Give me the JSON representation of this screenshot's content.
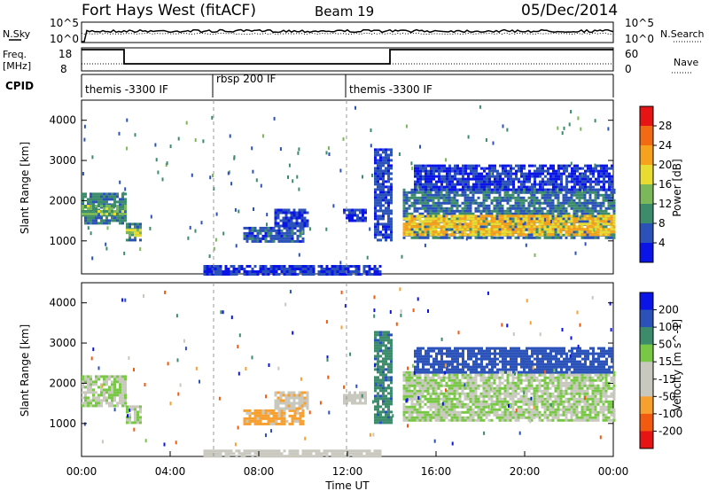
{
  "header": {
    "title": "Fort Hays West (fitACF)",
    "beam": "Beam 19",
    "date": "05/Dec/2014"
  },
  "top_panels": {
    "nsky_label": "N.Sky",
    "nsearch_label": "N.Search",
    "noise_ticks": [
      "10^5",
      "10^0"
    ],
    "noise_ticks_right": [
      "10^5",
      "10^0"
    ],
    "freq_label_1": "Freq.",
    "freq_label_2": "[MHz]",
    "freq_ticks": [
      "18",
      "8"
    ],
    "nave_ticks": [
      "60",
      "0"
    ],
    "nave_label": "Nave",
    "cpid_label": "CPID",
    "cpid_segments": [
      {
        "label": "themis -3300 IF",
        "start_hour": 0,
        "end_hour": 6
      },
      {
        "label": "rbsp 200 IF",
        "start_hour": 6,
        "end_hour": 12
      },
      {
        "label": "themis -3300 IF",
        "start_hour": 12,
        "end_hour": 24
      }
    ]
  },
  "colors": {
    "power_scale": [
      "#0a14e6",
      "#2a52b8",
      "#3c8c6c",
      "#7ab85a",
      "#e8dc32",
      "#f7a21c",
      "#f26a14",
      "#e61414"
    ],
    "velocity_scale": [
      "#e61414",
      "#f25a10",
      "#f7a030",
      "#c8c8be",
      "#c8c8be",
      "#78c846",
      "#3c8c6c",
      "#2a52b8",
      "#0a14e6"
    ],
    "ground_scatter": "#c8c8be"
  },
  "chart_data": [
    {
      "type": "heatmap",
      "name": "power",
      "ylabel": "Slant Range [km]",
      "yticks": [
        "4000",
        "3000",
        "2000",
        "1000"
      ],
      "ylim": [
        180,
        4500
      ],
      "xlim": [
        0,
        24
      ],
      "colorbar_label": "Power [dB]",
      "colorbar_ticks": [
        "28",
        "24",
        "20",
        "16",
        "12",
        "8",
        "4"
      ],
      "colorbar_range": [
        0,
        32
      ],
      "echo_regions": [
        {
          "t0": 0.0,
          "t1": 2.0,
          "r0": 1450,
          "r1": 2200,
          "value": 9
        },
        {
          "t0": 0.0,
          "t1": 2.0,
          "r0": 1650,
          "r1": 1900,
          "value": 14
        },
        {
          "t0": 2.0,
          "t1": 2.7,
          "r0": 1000,
          "r1": 1450,
          "value": 8
        },
        {
          "t0": 2.0,
          "t1": 2.7,
          "r0": 1150,
          "r1": 1300,
          "value": 16
        },
        {
          "t0": 7.3,
          "t1": 10.0,
          "r0": 1000,
          "r1": 1350,
          "value": 6
        },
        {
          "t0": 8.7,
          "t1": 10.2,
          "r0": 1350,
          "r1": 1800,
          "value": 5
        },
        {
          "t0": 11.8,
          "t1": 12.8,
          "r0": 1500,
          "r1": 1800,
          "value": 4
        },
        {
          "t0": 13.2,
          "t1": 14.0,
          "r0": 1000,
          "r1": 3300,
          "value": 5
        },
        {
          "t0": 14.5,
          "t1": 24.0,
          "r0": 1050,
          "r1": 2300,
          "value": 8
        },
        {
          "t0": 14.5,
          "t1": 24.0,
          "r0": 1150,
          "r1": 1650,
          "value": 20
        },
        {
          "t0": 15.0,
          "t1": 24.0,
          "r0": 2300,
          "r1": 2900,
          "value": 4
        },
        {
          "t0": 5.5,
          "t1": 13.5,
          "r0": 180,
          "r1": 400,
          "value": 4
        }
      ]
    },
    {
      "type": "heatmap",
      "name": "velocity",
      "ylabel": "Slant Range [km]",
      "yticks": [
        "4000",
        "3000",
        "2000",
        "1000"
      ],
      "ylim": [
        180,
        4500
      ],
      "xlim": [
        0,
        24
      ],
      "xlabel": "Time UT",
      "xticks": [
        "00:00",
        "04:00",
        "08:00",
        "12:00",
        "16:00",
        "20:00",
        "00:00"
      ],
      "colorbar_label": "Velocity [m s^-1]",
      "colorbar_ticks": [
        "200",
        "100",
        "50",
        "15",
        "-15",
        "-50",
        "-100",
        "-200"
      ],
      "echo_regions": [
        {
          "t0": 0.0,
          "t1": 2.0,
          "r0": 1450,
          "r1": 2200,
          "value": 0
        },
        {
          "t0": 2.0,
          "t1": 2.7,
          "r0": 1000,
          "r1": 1450,
          "value": 0
        },
        {
          "t0": 7.3,
          "t1": 10.0,
          "r0": 1000,
          "r1": 1350,
          "value": -60
        },
        {
          "t0": 8.7,
          "t1": 10.2,
          "r0": 1350,
          "r1": 1800,
          "value": -40
        },
        {
          "t0": 11.8,
          "t1": 12.8,
          "r0": 1500,
          "r1": 1800,
          "value": -30
        },
        {
          "t0": 13.2,
          "t1": 14.0,
          "r0": 1000,
          "r1": 3300,
          "value": 40
        },
        {
          "t0": 14.5,
          "t1": 24.0,
          "r0": 1050,
          "r1": 2300,
          "value": 0
        },
        {
          "t0": 15.0,
          "t1": 24.0,
          "r0": 2300,
          "r1": 2900,
          "value": 80
        },
        {
          "t0": 5.5,
          "t1": 13.5,
          "r0": 180,
          "r1": 350,
          "value": -30
        }
      ]
    }
  ]
}
